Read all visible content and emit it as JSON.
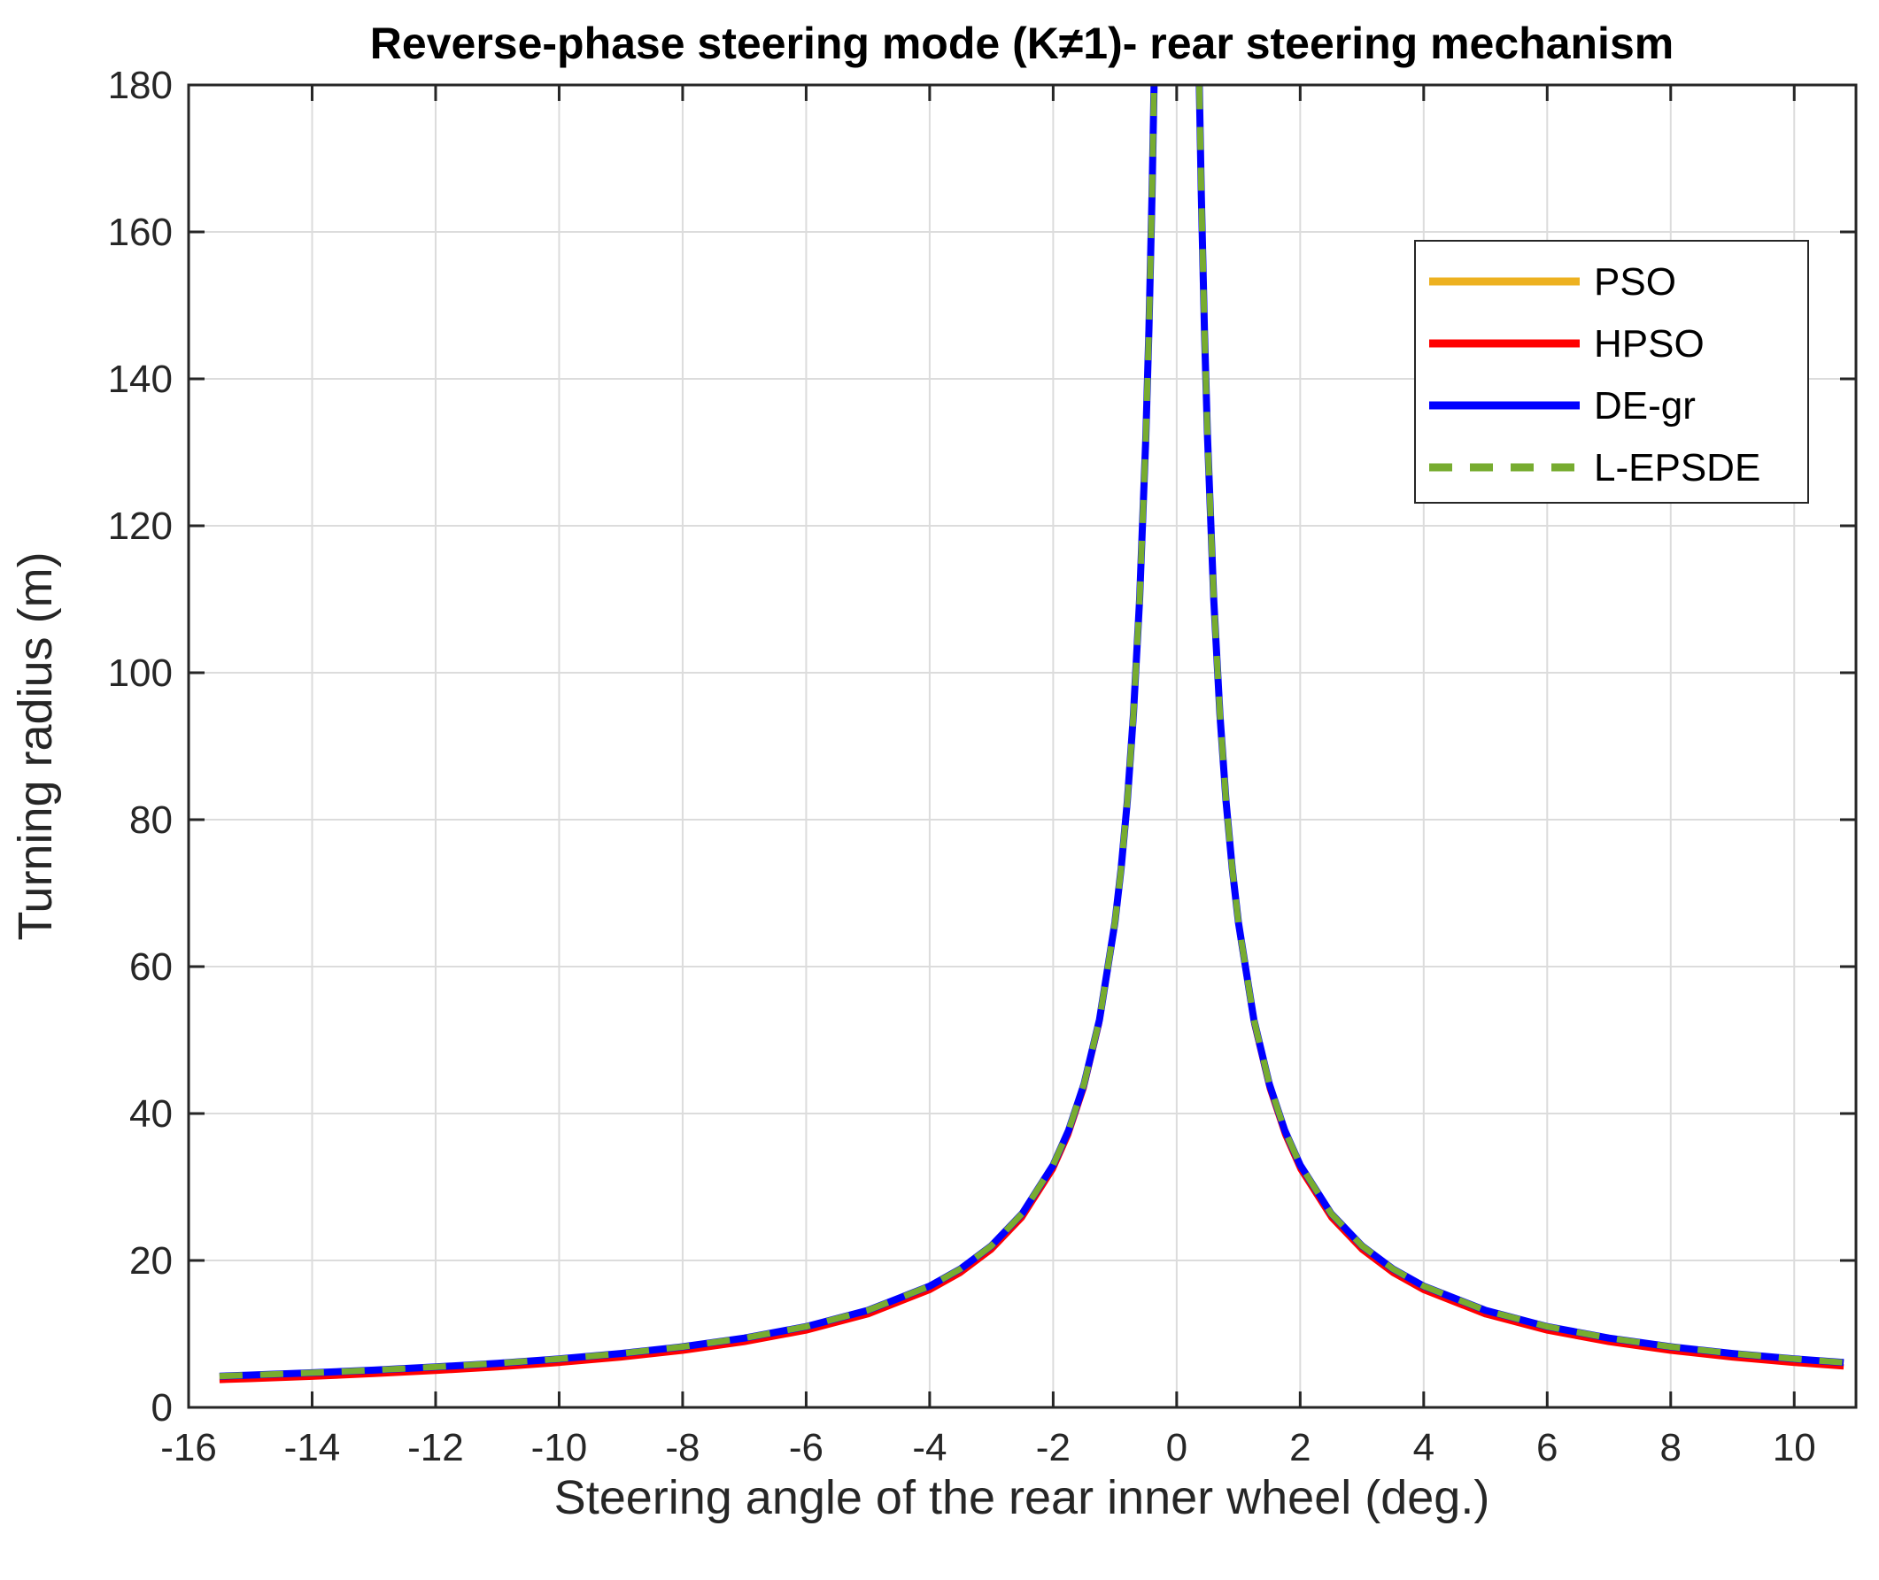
{
  "chart_data": {
    "type": "line",
    "title": "Reverse-phase steering mode (K≠1)- rear steering mechanism",
    "xlabel": "Steering angle of the rear inner wheel (deg.)",
    "ylabel": "Turning radius (m)",
    "xlim": [
      -16,
      11
    ],
    "ylim": [
      0,
      180
    ],
    "xticks": [
      -16,
      -14,
      -12,
      -10,
      -8,
      -6,
      -4,
      -2,
      0,
      2,
      4,
      6,
      8,
      10
    ],
    "yticks": [
      0,
      20,
      40,
      60,
      80,
      100,
      120,
      140,
      160,
      180
    ],
    "grid": true,
    "legend_position": "top-right",
    "curve_model": "R = 66 / |angle|",
    "left_branch_x": [
      -15.5,
      -15,
      -14,
      -13,
      -12,
      -11,
      -10,
      -9,
      -8,
      -7,
      -6,
      -5,
      -4,
      -3.5,
      -3,
      -2.5,
      -2,
      -1.75,
      -1.5,
      -1.25,
      -1,
      -0.9,
      -0.8,
      -0.7,
      -0.6,
      -0.5,
      -0.45,
      -0.4,
      -0.367
    ],
    "right_branch_x": [
      0.367,
      0.4,
      0.45,
      0.5,
      0.6,
      0.7,
      0.8,
      0.9,
      1,
      1.25,
      1.5,
      1.75,
      2,
      2.5,
      3,
      3.5,
      4,
      5,
      6,
      7,
      8,
      9,
      10,
      10.8
    ],
    "series": [
      {
        "name": "PSO",
        "color": "#EDB120",
        "style": "solid",
        "offset": 0
      },
      {
        "name": "HPSO",
        "color": "#FF0000",
        "style": "solid",
        "offset": -0.6
      },
      {
        "name": "DE-gr",
        "color": "#0000FF",
        "style": "solid",
        "offset": 0
      },
      {
        "name": "L-EPSDE",
        "color": "#77AC30",
        "style": "dashed",
        "offset": 0
      }
    ]
  }
}
